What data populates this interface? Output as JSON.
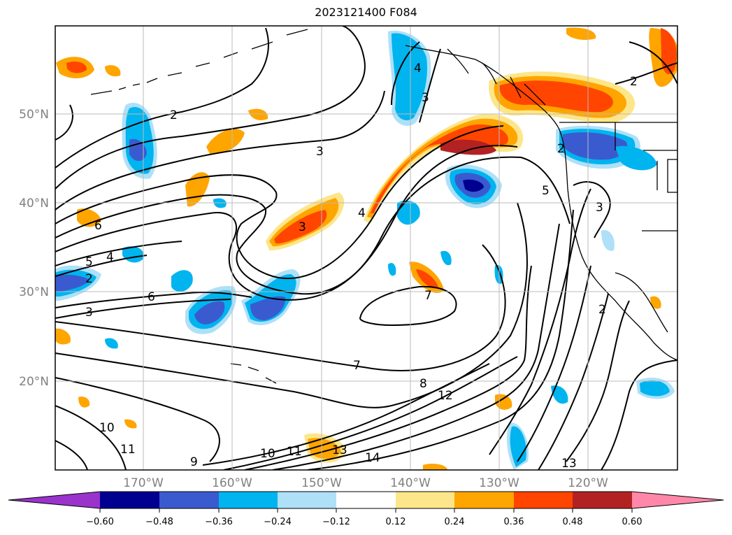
{
  "map": {
    "title": "2023121400 F084",
    "lat_labels": [
      "50°N",
      "40°N",
      "30°N",
      "20°N"
    ],
    "lon_labels": [
      "170°W",
      "160°W",
      "150°W",
      "140°W",
      "130°W",
      "120°W"
    ],
    "contour_labels": [
      "2",
      "3",
      "4",
      "3",
      "2",
      "2",
      "3",
      "3",
      "4",
      "5",
      "6",
      "2",
      "3",
      "6",
      "4",
      "5",
      "7",
      "7",
      "8",
      "12",
      "10",
      "11",
      "10",
      "11",
      "13",
      "14",
      "13",
      "2",
      "9"
    ],
    "colorbar": {
      "ticks": [
        "−0.60",
        "−0.48",
        "−0.36",
        "−0.24",
        "−0.12",
        "0.12",
        "0.24",
        "0.36",
        "0.48",
        "0.60"
      ],
      "colors": [
        "#9933cc",
        "#000090",
        "#3a5bd0",
        "#00b4ef",
        "#aee0f8",
        "#ffffff",
        "#fde68a",
        "#ffa500",
        "#ff4500",
        "#b22222",
        "#ff88aa"
      ]
    }
  }
}
